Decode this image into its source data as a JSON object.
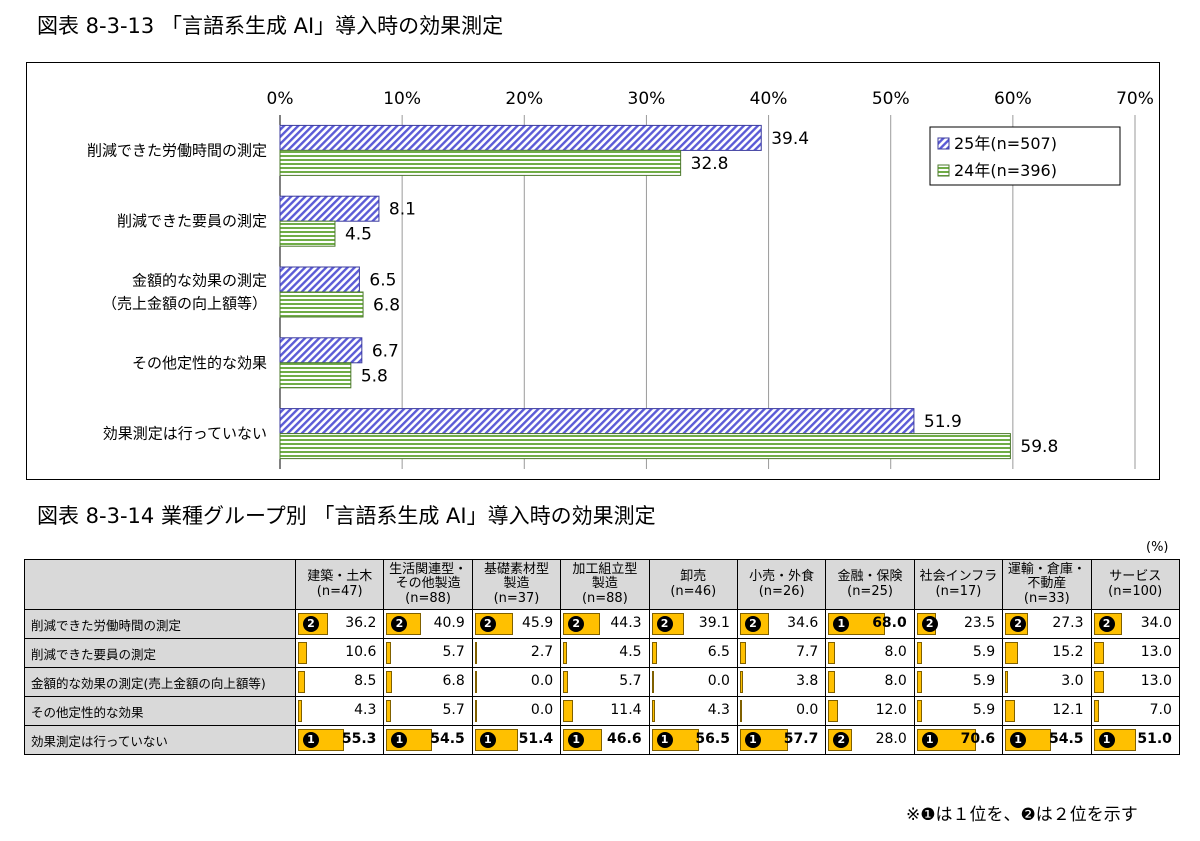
{
  "chart_data": [
    {
      "type": "bar",
      "orientation": "horizontal",
      "title": "図表 8-3-13 「言語系生成 AI」導入時の効果測定",
      "categories": [
        "削減できた労働時間の測定",
        "削減できた要員の測定",
        "金額的な効果の測定\n（売上金額の向上額等）",
        "その他定性的な効果",
        "効果測定は行っていない"
      ],
      "series": [
        {
          "name": "25年(n=507)",
          "values": [
            39.4,
            8.1,
            6.5,
            6.7,
            51.9
          ],
          "color": "#5b5bd6",
          "pattern": "diagonal-stripe"
        },
        {
          "name": "24年(n=396)",
          "values": [
            32.8,
            4.5,
            6.8,
            5.8,
            59.8
          ],
          "color": "#70ad47",
          "pattern": "horizontal-stripe"
        }
      ],
      "tick_labels": [
        "0%",
        "10%",
        "20%",
        "30%",
        "40%",
        "50%",
        "60%",
        "70%"
      ],
      "xlim": [
        0,
        70
      ],
      "grid": true,
      "legend_position": "top-right"
    },
    {
      "type": "table",
      "title": "図表 8-3-14 業種グループ別 「言語系生成 AI」導入時の効果測定",
      "unit": "(%)",
      "columns": [
        "建築・土木\n(n=47)",
        "生活関連型・\nその他製造\n(n=88)",
        "基礎素材型\n製造\n(n=37)",
        "加工組立型\n製造\n(n=88)",
        "卸売\n(n=46)",
        "小売・外食\n(n=26)",
        "金融・保険\n(n=25)",
        "社会インフラ\n(n=17)",
        "運輸・倉庫・\n不動産\n(n=33)",
        "サービス\n(n=100)"
      ],
      "rows": [
        {
          "label": "削減できた労働時間の測定",
          "values": [
            "36.2",
            "40.9",
            "45.9",
            "44.3",
            "39.1",
            "34.6",
            "68.0",
            "23.5",
            "27.3",
            "34.0"
          ],
          "ranks": [
            "❷",
            "❷",
            "❷",
            "❷",
            "❷",
            "❷",
            "❶",
            "❷",
            "❷",
            "❷"
          ]
        },
        {
          "label": "削減できた要員の測定",
          "values": [
            "10.6",
            "5.7",
            "2.7",
            "4.5",
            "6.5",
            "7.7",
            "8.0",
            "5.9",
            "15.2",
            "13.0"
          ],
          "ranks": [
            "",
            "",
            "",
            "",
            "",
            "",
            "",
            "",
            "",
            ""
          ]
        },
        {
          "label": "金額的な効果の測定(売上金額の向上額等)",
          "values": [
            "8.5",
            "6.8",
            "0.0",
            "5.7",
            "0.0",
            "3.8",
            "8.0",
            "5.9",
            "3.0",
            "13.0"
          ],
          "ranks": [
            "",
            "",
            "",
            "",
            "",
            "",
            "",
            "",
            "",
            ""
          ]
        },
        {
          "label": "その他定性的な効果",
          "values": [
            "4.3",
            "5.7",
            "0.0",
            "11.4",
            "4.3",
            "0.0",
            "12.0",
            "5.9",
            "12.1",
            "7.0"
          ],
          "ranks": [
            "",
            "",
            "",
            "",
            "",
            "",
            "",
            "",
            "",
            ""
          ]
        },
        {
          "label": "効果測定は行っていない",
          "values": [
            "55.3",
            "54.5",
            "51.4",
            "46.6",
            "56.5",
            "57.7",
            "28.0",
            "70.6",
            "54.5",
            "51.0"
          ],
          "ranks": [
            "❶",
            "❶",
            "❶",
            "❶",
            "❶",
            "❶",
            "❷",
            "❶",
            "❶",
            "❶"
          ]
        }
      ],
      "bar_color": "#ffc000",
      "note": "※❶は１位を、❷は２位を示す"
    }
  ]
}
